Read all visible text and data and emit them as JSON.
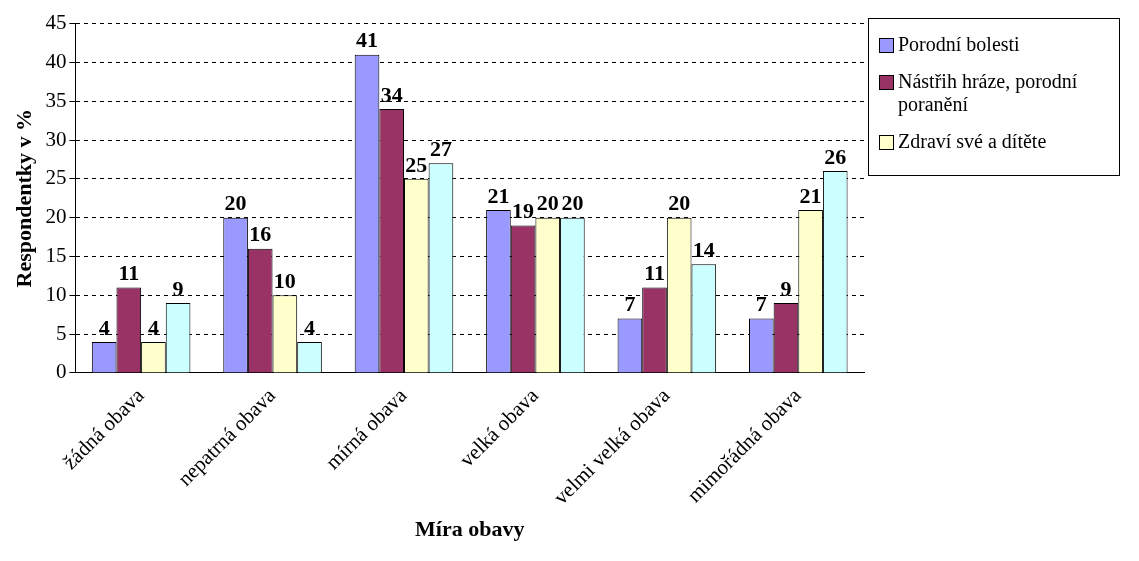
{
  "chart_data": {
    "type": "bar",
    "xlabel": "Míra obavy",
    "ylabel": "Respondentky v %",
    "categories": [
      "žádná obava",
      "nepatrná obava",
      "mírná obava",
      "velká obava",
      "velmi velká obava",
      "mimořádná obava"
    ],
    "series": [
      {
        "name": "Porodní bolesti",
        "color": "#9999ff",
        "values": [
          4,
          20,
          41,
          21,
          7,
          7
        ]
      },
      {
        "name": "Nástřih hráze, porodní poranění",
        "color": "#993366",
        "values": [
          11,
          16,
          34,
          19,
          11,
          9
        ]
      },
      {
        "name": "Zdraví své a dítěte",
        "color": "#ffffcc",
        "values": [
          4,
          10,
          25,
          20,
          20,
          21
        ]
      },
      {
        "color": "#ccffff",
        "values": [
          9,
          4,
          27,
          20,
          14,
          26
        ]
      }
    ],
    "ylim": [
      0,
      45
    ],
    "yticks": [
      0,
      5,
      10,
      15,
      20,
      25,
      30,
      35,
      40,
      45
    ],
    "grid": "y",
    "legend": "right",
    "data_labels": true
  }
}
